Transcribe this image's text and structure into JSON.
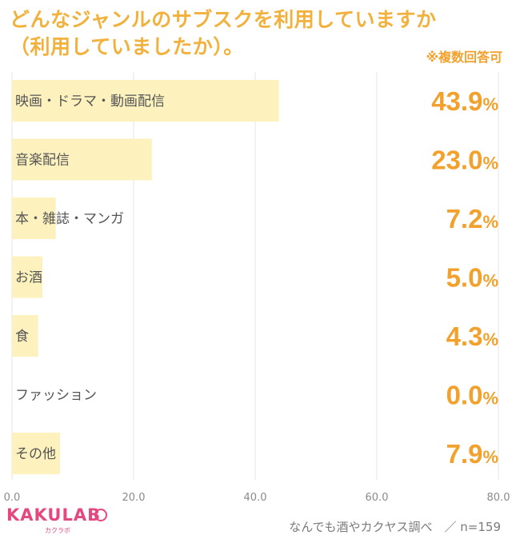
{
  "title_line1": "どんなジャンルのサブスクを利用していますか",
  "title_line2": "（利用していましたか）。",
  "note": "※複数回答可",
  "logo": "KAKULAB",
  "logo_sub": "カクラボ",
  "source": "なんでも酒やカクヤス調べ　／ n=159",
  "colors": {
    "bar": "#fdf2be",
    "value": "#f2a12c",
    "title": "#f2b13c",
    "label": "#555555",
    "grid": "#e4e4e4",
    "tick": "#8a8a8a",
    "logo": "#e5487e"
  },
  "chart_data": {
    "type": "bar",
    "orientation": "horizontal",
    "categories": [
      "映画・ドラマ・動画配信",
      "音楽配信",
      "本・雑誌・マンガ",
      "お酒",
      "食",
      "ファッション",
      "その他"
    ],
    "values": [
      43.9,
      23.0,
      7.2,
      5.0,
      4.3,
      0.0,
      7.9
    ],
    "value_labels": [
      "43.9",
      "23.0",
      "7.2",
      "5.0",
      "4.3",
      "0.0",
      "7.9"
    ],
    "value_unit": "%",
    "xlim": [
      0,
      80
    ],
    "xticks": [
      "0.0",
      "20.0",
      "40.0",
      "60.0",
      "80.0"
    ],
    "xtick_values": [
      0,
      20,
      40,
      60,
      80
    ],
    "grid": true
  }
}
